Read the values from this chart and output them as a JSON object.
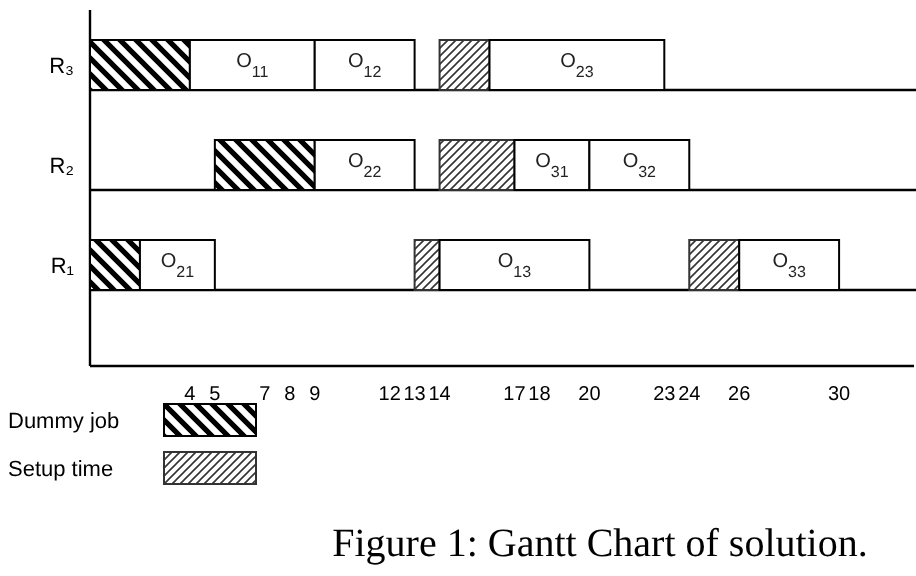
{
  "chart_data": {
    "type": "bar",
    "orientation": "horizontal",
    "title": "Figure 1: Gantt Chart of solution.",
    "categories": [
      "R₃",
      "R₂",
      "R₁"
    ],
    "series": [
      {
        "name": "Dummy job",
        "color": "#000000",
        "base": [
          0,
          5,
          0
        ],
        "values": [
          4,
          4,
          2
        ]
      },
      {
        "name": "Setup time",
        "color": "#333333",
        "base": [
          14,
          14,
          13
        ],
        "values": [
          2,
          3,
          1
        ]
      },
      {
        "color": "#333333",
        "base": [
          null,
          null,
          24
        ],
        "values": [
          null,
          null,
          2
        ]
      },
      {
        "name": "O$_{11}$",
        "color": "#ffffff",
        "base": [
          4,
          null,
          null
        ],
        "values": [
          5,
          null,
          null
        ]
      },
      {
        "name": "O$_{12}$",
        "color": "#ffffff",
        "base": [
          9,
          null,
          null
        ],
        "values": [
          4,
          null,
          null
        ]
      },
      {
        "name": "O$_{23}$",
        "color": "#ffffff",
        "base": [
          16,
          null,
          null
        ],
        "values": [
          7,
          null,
          null
        ]
      },
      {
        "name": "O$_{22}$",
        "color": "#ffffff",
        "base": [
          null,
          9,
          null
        ],
        "values": [
          null,
          4,
          null
        ]
      },
      {
        "name": "O$_{31}$",
        "color": "#ffffff",
        "base": [
          null,
          17,
          null
        ],
        "values": [
          null,
          3,
          null
        ]
      },
      {
        "name": "O$_{32}$",
        "color": "#ffffff",
        "base": [
          null,
          20,
          null
        ],
        "values": [
          null,
          4,
          null
        ]
      },
      {
        "name": "O$_{21}$",
        "color": "#ffffff",
        "base": [
          null,
          null,
          2
        ],
        "values": [
          null,
          null,
          3
        ]
      },
      {
        "name": "O$_{13}$",
        "color": "#ffffff",
        "base": [
          null,
          null,
          14
        ],
        "values": [
          null,
          null,
          6
        ]
      },
      {
        "name": "O$_{33}$",
        "color": "#ffffff",
        "base": [
          null,
          null,
          26
        ],
        "values": [
          null,
          null,
          4
        ]
      }
    ],
    "xlim": [
      0,
      33
    ],
    "xticks": [
      4,
      5,
      7,
      8,
      9,
      12,
      13,
      14,
      17,
      18,
      20,
      23,
      24,
      26,
      30
    ],
    "grid": "y",
    "legend": "bottom left"
  }
}
